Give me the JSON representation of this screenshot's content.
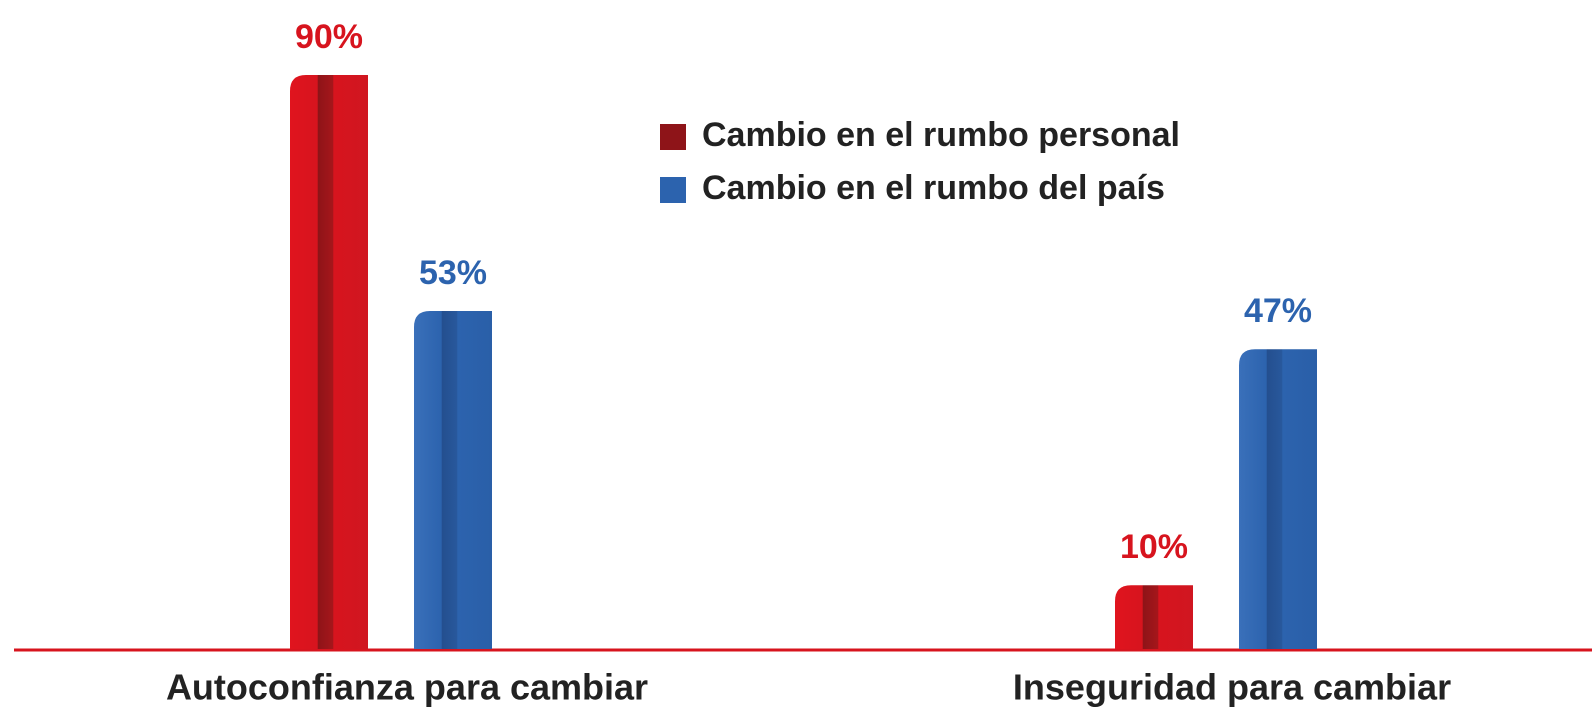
{
  "chart_data": {
    "type": "bar",
    "categories": [
      "Autoconfianza para cambiar",
      "Inseguridad para cambiar"
    ],
    "series": [
      {
        "name": "Cambio en el rumbo personal",
        "color": "#d7141e",
        "legend_color": "#8e1418",
        "values": [
          90,
          10
        ],
        "value_labels": [
          "90%",
          "10%"
        ]
      },
      {
        "name": "Cambio en el rumbo del país",
        "color": "#2c63ae",
        "legend_color": "#2c63ae",
        "values": [
          53,
          47
        ],
        "value_labels": [
          "53%",
          "47%"
        ]
      }
    ],
    "legend": "top-center"
  }
}
